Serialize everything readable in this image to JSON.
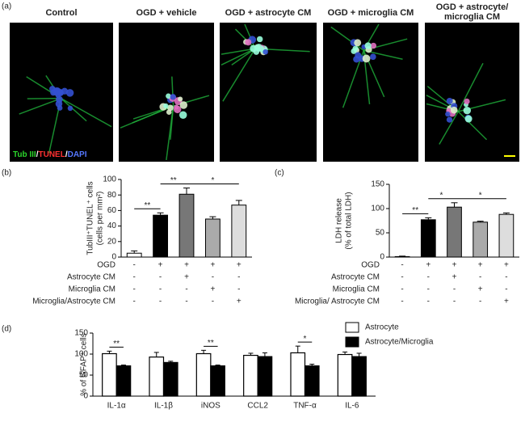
{
  "figure": {
    "panel_labels": [
      "(a)",
      "(b)",
      "(c)",
      "(d)"
    ],
    "images": [
      [
        "Control"
      ],
      [
        "OGD + vehicle"
      ],
      [
        "OGD + astrocyte CM"
      ],
      [
        "OGD + microglia CM"
      ],
      [
        "OGD + astrocyte/",
        "microglia CM"
      ]
    ],
    "stain_legend": [
      {
        "text": "Tub III",
        "color": "#2bd52b"
      },
      {
        "text": "/",
        "color": "#ffffff"
      },
      {
        "text": "TUNEL",
        "color": "#ff3030"
      },
      {
        "text": "/",
        "color": "#ffffff"
      },
      {
        "text": "DAPI",
        "color": "#5577ff"
      }
    ]
  },
  "chart_data": [
    {
      "type": "bar",
      "ylabel": [
        "TubIII⁺TUNEL⁺ cells",
        "(cells per mm²)"
      ],
      "values": [
        5,
        54,
        81,
        49,
        67
      ],
      "errors": [
        3,
        3,
        8,
        3,
        6
      ],
      "colors": [
        "#ffffff",
        "#000000",
        "#777777",
        "#aaaaaa",
        "#dddddd"
      ],
      "ylim": [
        0,
        100
      ],
      "yticks": [
        0,
        20,
        40,
        60,
        80,
        100
      ],
      "conditions": [
        {
          "name": "OGD",
          "marks": [
            "-",
            "+",
            "+",
            "+",
            "+"
          ]
        },
        {
          "name": "Astrocyte CM",
          "marks": [
            "-",
            "-",
            "+",
            "-",
            "-"
          ]
        },
        {
          "name": "Microglia CM",
          "marks": [
            "-",
            "-",
            "-",
            "+",
            "-"
          ]
        },
        {
          "name": "Microglia/Astrocyte CM",
          "marks": [
            "-",
            "-",
            "-",
            "-",
            "+"
          ]
        }
      ],
      "significance": [
        {
          "from": 0,
          "to": 1,
          "label": "**"
        },
        {
          "from": 1,
          "to": 2,
          "label": "**"
        },
        {
          "from": 2,
          "to": 4,
          "label": "*"
        }
      ]
    },
    {
      "type": "bar",
      "ylabel": [
        "LDH release",
        "(% of total LDH)"
      ],
      "values": [
        1,
        77,
        103,
        72,
        88
      ],
      "errors": [
        1,
        4,
        9,
        2,
        3
      ],
      "colors": [
        "#ffffff",
        "#000000",
        "#777777",
        "#aaaaaa",
        "#dddddd"
      ],
      "ylim": [
        0,
        150
      ],
      "yticks": [
        0,
        50,
        100,
        150
      ],
      "conditions": [
        {
          "name": "OGD",
          "marks": [
            "-",
            "+",
            "+",
            "+",
            "+"
          ]
        },
        {
          "name": "Astrocyte CM",
          "marks": [
            "-",
            "-",
            "+",
            "-",
            "-"
          ]
        },
        {
          "name": "Microglia CM",
          "marks": [
            "-",
            "-",
            "-",
            "+",
            "-"
          ]
        },
        {
          "name": "Microglia/ Astrocyte CM",
          "marks": [
            "-",
            "-",
            "-",
            "-",
            "+"
          ]
        }
      ],
      "significance": [
        {
          "from": 0,
          "to": 1,
          "label": "**"
        },
        {
          "from": 1,
          "to": 2,
          "label": "*"
        },
        {
          "from": 2,
          "to": 4,
          "label": "*"
        }
      ]
    },
    {
      "type": "grouped",
      "ylabel": [
        "% of GFAP⁺ cells"
      ],
      "categories": [
        "IL-1α",
        "IL-1β",
        "iNOS",
        "CCL2",
        "TNF-α",
        "IL-6"
      ],
      "series": [
        {
          "name": "Astrocyte",
          "color": "#ffffff",
          "values": [
            101,
            93,
            101,
            97,
            103,
            99
          ],
          "errors": [
            6,
            11,
            8,
            5,
            16,
            6
          ]
        },
        {
          "name": "Astrocyte/Microglia",
          "color": "#000000",
          "values": [
            72,
            80,
            72,
            94,
            72,
            94
          ],
          "errors": [
            2,
            3,
            2,
            9,
            4,
            8
          ]
        }
      ],
      "ylim": [
        0,
        150
      ],
      "yticks": [
        0,
        50,
        100,
        150
      ],
      "legend": "upper right",
      "significance": [
        {
          "from": 0,
          "to": 0,
          "label": "**"
        },
        {
          "from": 2,
          "to": 2,
          "label": "**"
        },
        {
          "from": 4,
          "to": 4,
          "label": "*"
        }
      ]
    }
  ]
}
